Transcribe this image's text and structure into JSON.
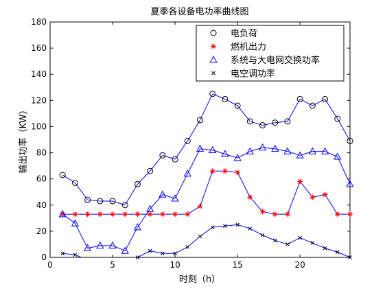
{
  "chart_data": {
    "type": "line",
    "title": "夏季各设备电功率曲线图",
    "xlabel": "时刻（h）",
    "ylabel": "输出功率（KW）",
    "xlim": [
      0,
      24
    ],
    "ylim": [
      0,
      180
    ],
    "xticks": [
      0,
      5,
      10,
      15,
      20
    ],
    "yticks": [
      0,
      20,
      40,
      60,
      80,
      100,
      120,
      140,
      160,
      180
    ],
    "grid": false,
    "legend_position": "top-right",
    "x": [
      1,
      2,
      3,
      4,
      5,
      6,
      7,
      8,
      9,
      10,
      11,
      12,
      13,
      14,
      15,
      16,
      17,
      18,
      19,
      20,
      21,
      22,
      23,
      24
    ],
    "series": [
      {
        "name": "电负荷",
        "marker": "circle",
        "color": "#0000ff",
        "marker_color": "#000000",
        "values": [
          63,
          57,
          44,
          43,
          43,
          40,
          56,
          66,
          78,
          75,
          89,
          105,
          125,
          121,
          116,
          104,
          101,
          103,
          104,
          121,
          116,
          121,
          106,
          89
        ]
      },
      {
        "name": "燃机出力",
        "marker": "star",
        "color": "#0000ff",
        "marker_color": "#ff0000",
        "values": [
          33,
          33,
          33,
          33,
          33,
          33,
          33,
          33,
          33,
          33,
          33,
          39,
          66,
          66,
          65,
          46,
          35,
          33,
          33,
          58,
          46,
          48,
          33,
          33
        ]
      },
      {
        "name": "系统与大电网交换功率",
        "marker": "triangle",
        "color": "#0000ff",
        "marker_color": "#0000ff",
        "values": [
          33,
          26,
          7,
          9,
          9,
          5,
          23,
          37,
          48,
          45,
          64,
          83,
          82,
          79,
          76,
          81,
          84,
          83,
          81,
          78,
          81,
          81,
          77,
          56
        ]
      },
      {
        "name": "电空调功率",
        "marker": "x",
        "color": "#0000ff",
        "marker_color": "#000000",
        "values": [
          3,
          2,
          -2,
          -1,
          -2,
          -3,
          0,
          5,
          3,
          3,
          8,
          16,
          23,
          24,
          25,
          22,
          17,
          13,
          10,
          15,
          11,
          7,
          4,
          0
        ]
      }
    ]
  }
}
